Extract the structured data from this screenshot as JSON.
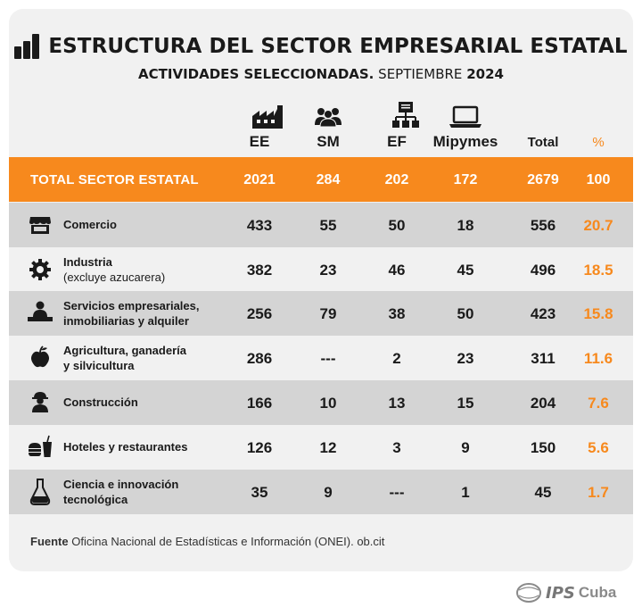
{
  "title": "ESTRUCTURA DEL SECTOR EMPRESARIAL ESTATAL",
  "subtitle_bold": "ACTIVIDADES SELECCIONADAS.",
  "subtitle_normal": "SEPTIEMBRE",
  "subtitle_year": "2024",
  "columns": {
    "ee": "EE",
    "sm": "SM",
    "ef": "EF",
    "mipymes": "Mipymes",
    "total": "Total",
    "pct": "%"
  },
  "total_row": {
    "label": "TOTAL SECTOR ESTATAL",
    "ee": "2021",
    "sm": "284",
    "ef": "202",
    "mipymes": "172",
    "total": "2679",
    "pct": "100"
  },
  "rows": [
    {
      "line1": "Comercio",
      "line2": "",
      "icon": "store-icon",
      "ee": "433",
      "sm": "55",
      "ef": "50",
      "mipymes": "18",
      "total": "556",
      "pct": "20.7"
    },
    {
      "line1": "Industria",
      "line2": "(excluye azucarera)",
      "icon": "gear-icon",
      "ee": "382",
      "sm": "23",
      "ef": "46",
      "mipymes": "45",
      "total": "496",
      "pct": "18.5"
    },
    {
      "line1": "Servicios empresariales,",
      "line2": "inmobiliarias y alquiler",
      "icon": "office-worker-icon",
      "ee": "256",
      "sm": "79",
      "ef": "38",
      "mipymes": "50",
      "total": "423",
      "pct": "15.8"
    },
    {
      "line1": "Agricultura, ganadería",
      "line2": "y silvicultura",
      "icon": "apple-icon",
      "ee": "286",
      "sm": "---",
      "ef": "2",
      "mipymes": "23",
      "total": "311",
      "pct": "11.6"
    },
    {
      "line1": "Construcción",
      "line2": "",
      "icon": "construction-worker-icon",
      "ee": "166",
      "sm": "10",
      "ef": "13",
      "mipymes": "15",
      "total": "204",
      "pct": "7.6"
    },
    {
      "line1": "Hoteles y restaurantes",
      "line2": "",
      "icon": "food-drink-icon",
      "ee": "126",
      "sm": "12",
      "ef": "3",
      "mipymes": "9",
      "total": "150",
      "pct": "5.6"
    },
    {
      "line1": "Ciencia e innovación",
      "line2": "tecnológica",
      "icon": "flask-icon",
      "ee": "35",
      "sm": "9",
      "ef": "---",
      "mipymes": "1",
      "total": "45",
      "pct": "1.7"
    }
  ],
  "source_label": "Fuente",
  "source_text": "Oficina Nacional de Estadísticas e Información (ONEI). ob.cit",
  "logo_mark": "IPS",
  "logo_text": "Cuba",
  "colors": {
    "accent": "#f7891d",
    "card": "#f1f1f1",
    "shade": "#d4d4d4",
    "text": "#1a1a1a"
  },
  "chart_data": {
    "type": "table",
    "title": "ESTRUCTURA DEL SECTOR EMPRESARIAL ESTATAL",
    "subtitle": "ACTIVIDADES SELECCIONADAS. SEPTIEMBRE 2024",
    "columns": [
      "EE",
      "SM",
      "EF",
      "Mipymes",
      "Total",
      "%"
    ],
    "rows": [
      {
        "label": "TOTAL SECTOR ESTATAL",
        "values": [
          2021,
          284,
          202,
          172,
          2679,
          100
        ]
      },
      {
        "label": "Comercio",
        "values": [
          433,
          55,
          50,
          18,
          556,
          20.7
        ]
      },
      {
        "label": "Industria (excluye azucarera)",
        "values": [
          382,
          23,
          46,
          45,
          496,
          18.5
        ]
      },
      {
        "label": "Servicios empresariales, inmobiliarias y alquiler",
        "values": [
          256,
          79,
          38,
          50,
          423,
          15.8
        ]
      },
      {
        "label": "Agricultura, ganadería y silvicultura",
        "values": [
          286,
          null,
          2,
          23,
          311,
          11.6
        ]
      },
      {
        "label": "Construcción",
        "values": [
          166,
          10,
          13,
          15,
          204,
          7.6
        ]
      },
      {
        "label": "Hoteles y restaurantes",
        "values": [
          126,
          12,
          3,
          9,
          150,
          5.6
        ]
      },
      {
        "label": "Ciencia e innovación tecnológica",
        "values": [
          35,
          9,
          null,
          1,
          45,
          1.7
        ]
      }
    ]
  }
}
